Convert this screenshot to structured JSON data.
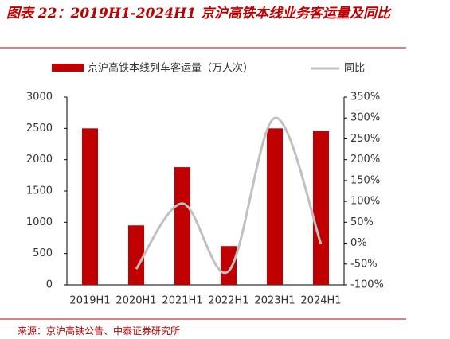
{
  "chart_data": {
    "type": "bar-line",
    "title": "图表 22：2019H1-2024H1 京沪高铁本线业务客运量及同比",
    "source": "来源：京沪高铁公告、中泰证券研究所",
    "categories": [
      "2019H1",
      "2020H1",
      "2021H1",
      "2022H1",
      "2023H1",
      "2024H1"
    ],
    "series": [
      {
        "name": "京沪高铁本线列车客运量（万人次）",
        "color": "#c00000",
        "type": "bar",
        "values": [
          2500,
          950,
          1880,
          620,
          2500,
          2460
        ]
      },
      {
        "name": "同比",
        "color": "#c0c0c0",
        "type": "line",
        "axis": "y2",
        "values": [
          null,
          -62,
          95,
          -67,
          300,
          -2
        ]
      }
    ],
    "ylim": [
      0,
      3000
    ],
    "yticks": [
      0,
      500,
      1000,
      1500,
      2000,
      2500,
      3000
    ],
    "y2lim": [
      -100,
      350
    ],
    "y2ticks": [
      {
        "value": -100,
        "label": "-100%"
      },
      {
        "value": -50,
        "label": "-50%"
      },
      {
        "value": 0,
        "label": "0%"
      },
      {
        "value": 50,
        "label": "50%"
      },
      {
        "value": 100,
        "label": "100%"
      },
      {
        "value": 150,
        "label": "150%"
      },
      {
        "value": 200,
        "label": "200%"
      },
      {
        "value": 250,
        "label": "250%"
      },
      {
        "value": 300,
        "label": "300%"
      },
      {
        "value": 350,
        "label": "350%"
      }
    ]
  }
}
